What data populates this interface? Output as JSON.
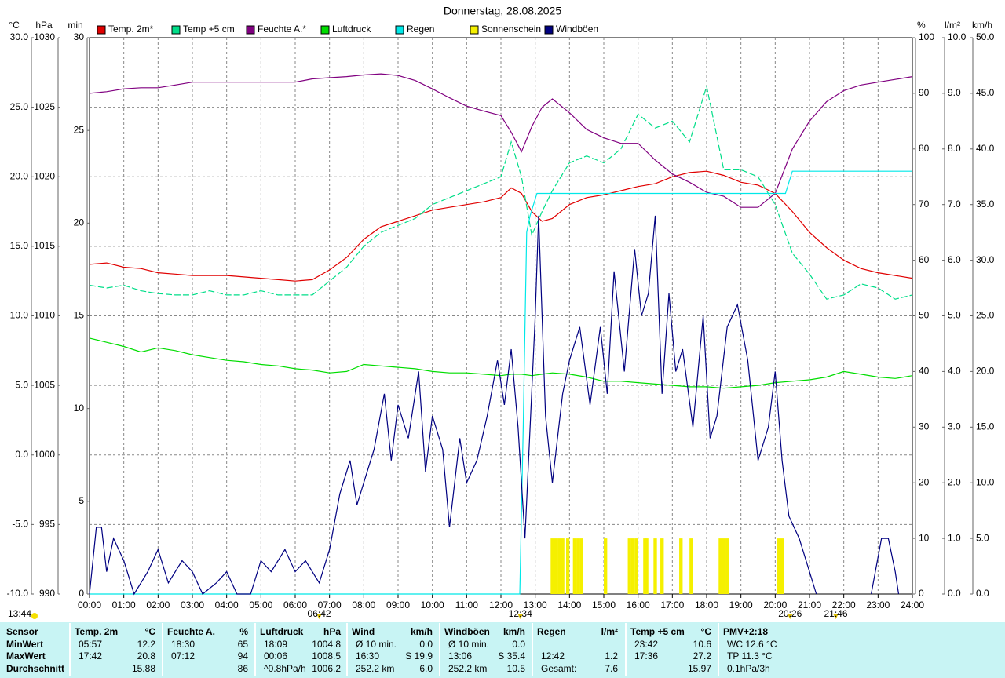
{
  "chart_data": {
    "type": "line",
    "title": "Donnerstag, 28.08.2025",
    "grid": true,
    "xlim": [
      0,
      24
    ],
    "xticks": [
      {
        "value": 0,
        "label": "00:00"
      },
      {
        "value": 1,
        "label": "01:00"
      },
      {
        "value": 2,
        "label": "02:00"
      },
      {
        "value": 3,
        "label": "03:00"
      },
      {
        "value": 4,
        "label": "04:00"
      },
      {
        "value": 5,
        "label": "05:00"
      },
      {
        "value": 6,
        "label": "06:00"
      },
      {
        "value": 7,
        "label": "07:00"
      },
      {
        "value": 8,
        "label": "08:00"
      },
      {
        "value": 9,
        "label": "09:00"
      },
      {
        "value": 10,
        "label": "10:00"
      },
      {
        "value": 11,
        "label": "11:00"
      },
      {
        "value": 12,
        "label": "12:00"
      },
      {
        "value": 13,
        "label": "13:00"
      },
      {
        "value": 14,
        "label": "14:00"
      },
      {
        "value": 15,
        "label": "15:00"
      },
      {
        "value": 16,
        "label": "16:00"
      },
      {
        "value": 17,
        "label": "17:00"
      },
      {
        "value": 18,
        "label": "18:00"
      },
      {
        "value": 19,
        "label": "19:00"
      },
      {
        "value": 20,
        "label": "20:00"
      },
      {
        "value": 21,
        "label": "21:00"
      },
      {
        "value": 22,
        "label": "22:00"
      },
      {
        "value": 23,
        "label": "23:00"
      },
      {
        "value": 24,
        "label": "24:00"
      }
    ],
    "y_axes": [
      {
        "title": "°C",
        "side": "left",
        "color": "#e00000",
        "lim": [
          -10,
          30
        ],
        "ticks": [
          {
            "value": -10,
            "label": "-10.0"
          },
          {
            "value": -5,
            "label": "-5.0"
          },
          {
            "value": 0,
            "label": "0.0"
          },
          {
            "value": 5,
            "label": "5.0"
          },
          {
            "value": 10,
            "label": "10.0"
          },
          {
            "value": 15,
            "label": "15.0"
          },
          {
            "value": 20,
            "label": "20.0"
          },
          {
            "value": 25,
            "label": "25.0"
          },
          {
            "value": 30,
            "label": "30.0"
          }
        ]
      },
      {
        "title": "hPa",
        "side": "left",
        "color": "#00b000",
        "lim": [
          990,
          1030
        ],
        "ticks": [
          990,
          995,
          1000,
          1005,
          1010,
          1015,
          1020,
          1025,
          1030
        ]
      },
      {
        "title": "min",
        "side": "left",
        "color": "#e0e000",
        "lim": [
          0,
          30
        ],
        "ticks": [
          0,
          5,
          10,
          15,
          20,
          25,
          30
        ]
      },
      {
        "title": "%",
        "side": "right",
        "color": "#800080",
        "lim": [
          0,
          100
        ],
        "ticks": [
          0,
          10,
          20,
          30,
          40,
          50,
          60,
          70,
          80,
          90,
          100
        ]
      },
      {
        "title": "l/m²",
        "side": "right",
        "color": "#00d0d0",
        "lim": [
          0,
          10
        ],
        "ticks": [
          {
            "value": 0,
            "label": "0.0"
          },
          {
            "value": 1,
            "label": "1.0"
          },
          {
            "value": 2,
            "label": "2.0"
          },
          {
            "value": 3,
            "label": "3.0"
          },
          {
            "value": 4,
            "label": "4.0"
          },
          {
            "value": 5,
            "label": "5.0"
          },
          {
            "value": 6,
            "label": "6.0"
          },
          {
            "value": 7,
            "label": "7.0"
          },
          {
            "value": 8,
            "label": "8.0"
          },
          {
            "value": 9,
            "label": "9.0"
          },
          {
            "value": 10,
            "label": "10.0"
          }
        ]
      },
      {
        "title": "km/h",
        "side": "right",
        "color": "#000080",
        "lim": [
          0,
          50
        ],
        "ticks": [
          {
            "value": 0,
            "label": "0.0"
          },
          {
            "value": 5,
            "label": "5.0"
          },
          {
            "value": 10,
            "label": "10.0"
          },
          {
            "value": 15,
            "label": "15.0"
          },
          {
            "value": 20,
            "label": "20.0"
          },
          {
            "value": 25,
            "label": "25.0"
          },
          {
            "value": 30,
            "label": "30.0"
          },
          {
            "value": 35,
            "label": "35.0"
          },
          {
            "value": 40,
            "label": "40.0"
          },
          {
            "value": 45,
            "label": "45.0"
          },
          {
            "value": 50,
            "label": "50.0"
          }
        ]
      }
    ],
    "x": [
      0,
      0.5,
      1,
      1.5,
      2,
      2.5,
      3,
      3.5,
      4,
      4.5,
      5,
      5.5,
      6,
      6.5,
      7,
      7.5,
      8,
      8.5,
      9,
      9.5,
      10,
      10.5,
      11,
      11.5,
      12,
      12.3,
      12.6,
      12.9,
      13.2,
      13.5,
      14,
      14.5,
      15,
      15.5,
      16,
      16.5,
      17,
      17.5,
      18,
      18.5,
      19,
      19.5,
      20,
      20.5,
      21,
      21.5,
      22,
      22.5,
      23,
      23.5,
      24
    ],
    "series": [
      {
        "name": "Temp. 2m*",
        "type": "line",
        "axis": 0,
        "color": "#e00000",
        "values": [
          13.7,
          13.8,
          13.5,
          13.4,
          13.1,
          13.0,
          12.9,
          12.9,
          12.9,
          12.8,
          12.7,
          12.6,
          12.5,
          12.6,
          13.3,
          14.2,
          15.5,
          16.4,
          16.8,
          17.2,
          17.6,
          17.8,
          18.0,
          18.2,
          18.5,
          19.2,
          18.8,
          17.5,
          16.8,
          17.0,
          18.0,
          18.5,
          18.7,
          19.0,
          19.3,
          19.5,
          20.0,
          20.3,
          20.4,
          20.1,
          19.6,
          19.4,
          18.8,
          17.5,
          16.0,
          14.9,
          14.0,
          13.4,
          13.1,
          12.9,
          12.7
        ]
      },
      {
        "name": "Temp +5 cm",
        "type": "line",
        "axis": 0,
        "color": "#00dd88",
        "dashed": true,
        "values": [
          12.2,
          12.0,
          12.2,
          11.8,
          11.6,
          11.5,
          11.5,
          11.8,
          11.5,
          11.5,
          11.8,
          11.5,
          11.5,
          11.5,
          12.5,
          13.5,
          15.0,
          16.0,
          16.5,
          17.0,
          18.0,
          18.5,
          19.0,
          19.5,
          20.0,
          22.5,
          20.0,
          15.8,
          17.5,
          19.0,
          21.0,
          21.5,
          21.0,
          22.0,
          24.5,
          23.5,
          24.0,
          22.5,
          26.5,
          20.5,
          20.5,
          20.0,
          18.0,
          14.5,
          13.0,
          11.2,
          11.5,
          12.3,
          12.0,
          11.2,
          11.5
        ]
      },
      {
        "name": "Feuchte A.*",
        "type": "line",
        "axis": 3,
        "color": "#800080",
        "values": [
          90,
          90.3,
          90.8,
          91,
          91,
          91.5,
          92,
          92,
          92,
          92,
          92,
          92,
          92,
          92.6,
          92.8,
          93,
          93.3,
          93.5,
          93.2,
          92.3,
          90.8,
          89.2,
          87.7,
          86.8,
          86,
          83,
          79.5,
          84,
          87.5,
          89,
          86.5,
          83.5,
          82,
          81,
          81,
          78,
          75.5,
          74,
          72.2,
          71.5,
          69.5,
          69.5,
          72,
          80,
          85,
          88.5,
          90.5,
          91.5,
          92,
          92.5,
          93
        ]
      },
      {
        "name": "Luftdruck",
        "type": "line",
        "axis": 1,
        "color": "#00dd00",
        "values": [
          1008.4,
          1008.1,
          1007.8,
          1007.4,
          1007.7,
          1007.5,
          1007.2,
          1007.0,
          1006.8,
          1006.7,
          1006.5,
          1006.4,
          1006.2,
          1006.1,
          1005.9,
          1006.0,
          1006.5,
          1006.4,
          1006.3,
          1006.2,
          1006.0,
          1005.9,
          1005.9,
          1005.8,
          1005.7,
          1005.8,
          1005.8,
          1005.7,
          1005.8,
          1005.9,
          1005.8,
          1005.6,
          1005.3,
          1005.3,
          1005.2,
          1005.1,
          1005.0,
          1004.9,
          1004.9,
          1004.8,
          1004.9,
          1005.0,
          1005.2,
          1005.3,
          1005.4,
          1005.6,
          1006.0,
          1005.8,
          1005.6,
          1005.5,
          1005.7
        ]
      },
      {
        "name": "Regen",
        "type": "line",
        "axis": 4,
        "color": "#00e8e8",
        "x": [
          0,
          12.55,
          12.65,
          12.75,
          12.85,
          13.05,
          20.3,
          20.4,
          20.5,
          24
        ],
        "values": [
          0,
          0,
          3,
          6.5,
          6.8,
          7.2,
          7.2,
          7.4,
          7.6,
          7.6
        ]
      },
      {
        "name": "Sonnenschein",
        "type": "bar",
        "axis": 2,
        "color": "#f5f000",
        "x": [
          13.45,
          13.55,
          13.65,
          13.75,
          13.9,
          14.1,
          14.2,
          14.3,
          15.0,
          15.7,
          15.8,
          15.9,
          16.15,
          16.2,
          16.45,
          16.65,
          17.2,
          17.5,
          18.35,
          18.45,
          18.55,
          20.05,
          20.15
        ],
        "values": [
          3,
          3,
          3,
          3,
          3,
          3,
          3,
          3,
          3,
          3,
          3,
          3,
          3,
          3,
          3,
          3,
          3,
          3,
          3,
          3,
          3,
          3,
          3
        ]
      },
      {
        "name": "Windböen",
        "type": "line",
        "axis": 5,
        "color": "#000080",
        "x": [
          0,
          0.2,
          0.35,
          0.5,
          0.7,
          1,
          1.3,
          1.7,
          2,
          2.3,
          2.7,
          3,
          3.3,
          3.7,
          4,
          4.3,
          4.7,
          5,
          5.3,
          5.7,
          6,
          6.3,
          6.7,
          7,
          7.3,
          7.6,
          7.8,
          8,
          8.3,
          8.6,
          8.8,
          9,
          9.3,
          9.6,
          9.8,
          10,
          10.3,
          10.5,
          10.8,
          11,
          11.3,
          11.6,
          11.9,
          12.1,
          12.3,
          12.5,
          12.7,
          13,
          13.1,
          13.3,
          13.5,
          13.8,
          14,
          14.3,
          14.6,
          14.9,
          15.1,
          15.3,
          15.6,
          15.9,
          16.1,
          16.3,
          16.5,
          16.7,
          16.9,
          17.1,
          17.3,
          17.6,
          17.9,
          18.1,
          18.3,
          18.6,
          18.9,
          19.2,
          19.5,
          19.8,
          20,
          20.2,
          20.4,
          20.7,
          21,
          21.2,
          21.5,
          22,
          22.5,
          22.8,
          23.1,
          23.3,
          23.5,
          23.6
        ],
        "values": [
          0,
          6,
          6,
          2,
          5,
          3,
          0,
          2,
          4,
          1,
          3,
          2,
          0,
          1,
          2,
          0,
          0,
          3,
          2,
          4,
          2,
          3,
          1,
          4,
          9,
          12,
          8,
          10,
          13,
          18,
          12,
          17,
          14,
          20,
          11,
          16,
          13,
          6,
          14,
          10,
          12,
          16,
          21,
          17,
          22,
          15,
          5,
          25,
          34,
          16,
          10,
          18,
          21,
          24,
          17,
          24,
          18,
          29,
          20,
          31,
          25,
          27,
          34,
          18,
          27,
          20,
          22,
          15,
          25,
          14,
          16,
          24,
          26,
          21,
          12,
          15,
          20,
          12,
          7,
          5,
          2,
          0,
          null,
          null,
          null,
          0,
          5,
          5,
          2,
          0
        ]
      }
    ],
    "annotations": [
      {
        "text": "13:44"
      },
      {
        "text": "06:42",
        "x": 6.7
      },
      {
        "text": "12:34",
        "x": 12.567
      },
      {
        "text": "20:26",
        "x": 20.433
      },
      {
        "text": "21:46",
        "x": 21.767
      }
    ]
  },
  "stats_table": {
    "columns": [
      {
        "title": "Sensor"
      },
      {
        "title": "Temp. 2m",
        "unit": "°C"
      },
      {
        "title": "Feuchte A.",
        "unit": "%"
      },
      {
        "title": "Luftdruck",
        "unit": "hPa"
      },
      {
        "title": "Wind",
        "unit": "km/h"
      },
      {
        "title": "Windböen",
        "unit": "km/h"
      },
      {
        "title": "Regen",
        "unit": "l/m²"
      },
      {
        "title": "Temp +5 cm",
        "unit": "°C"
      },
      {
        "title": "PMV+2:18"
      }
    ],
    "rows": [
      {
        "label": "MinWert",
        "cells": [
          {
            "left": "05:57",
            "right": "12.2"
          },
          {
            "left": "18:30",
            "right": "65"
          },
          {
            "left": "18:09",
            "right": "1004.8"
          },
          {
            "left": "Ø 10 min.",
            "right": "0.0"
          },
          {
            "left": "Ø 10 min.",
            "right": "0.0"
          },
          null,
          {
            "left": "23:42",
            "right": "10.6"
          },
          {
            "left": "WC 12.6 °C"
          }
        ]
      },
      {
        "label": "MaxWert",
        "cells": [
          {
            "left": "17:42",
            "right": "20.8"
          },
          {
            "left": "07:12",
            "right": "94"
          },
          {
            "left": "00:06",
            "right": "1008.5"
          },
          {
            "left": "16:30",
            "right": "S 19.9"
          },
          {
            "left": "13:06",
            "right": "S 35.4"
          },
          {
            "left": "12:42",
            "right": "1.2"
          },
          {
            "left": "17:36",
            "right": "27.2"
          },
          {
            "left": "TP 11.3 °C"
          }
        ]
      },
      {
        "label": "Durchschnitt",
        "cells": [
          {
            "right": "15.88"
          },
          {
            "right": "86"
          },
          {
            "left": "^0.8hPa/h",
            "right": "1006.2"
          },
          {
            "left": "252.2 km",
            "right": "6.0"
          },
          {
            "left": "252.2 km",
            "right": "10.5"
          },
          {
            "left": "Gesamt:",
            "right": "7.6"
          },
          {
            "right": "15.97"
          },
          {
            "left": "0.1hPa/3h"
          }
        ]
      }
    ]
  }
}
